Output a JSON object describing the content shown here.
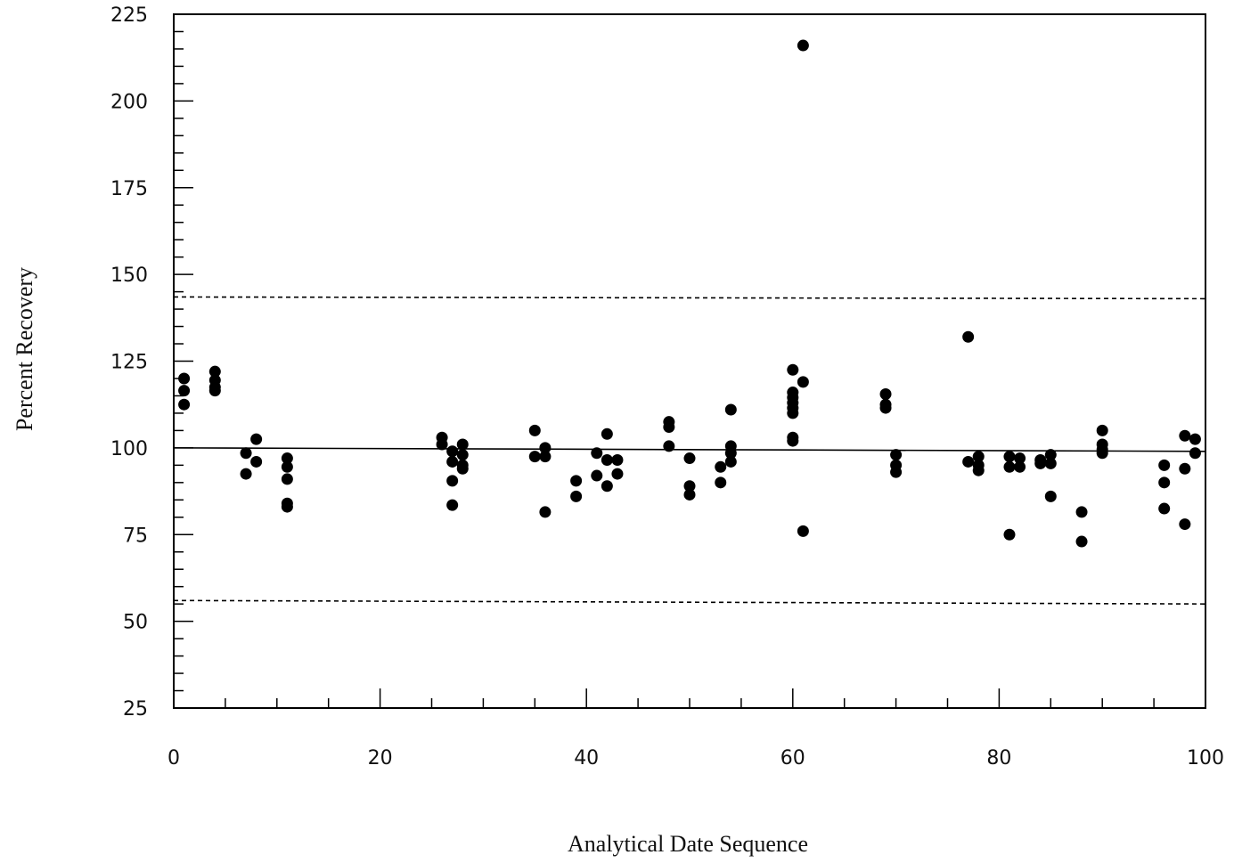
{
  "chart_data": {
    "type": "scatter",
    "title": "",
    "xlabel": "Analytical Date Sequence",
    "ylabel": "Percent Recovery",
    "xlim": [
      0,
      100
    ],
    "ylim": [
      25,
      225
    ],
    "x_ticks": [
      0,
      20,
      40,
      60,
      80,
      100
    ],
    "y_ticks": [
      25,
      50,
      75,
      100,
      125,
      150,
      175,
      200,
      225
    ],
    "grid": false,
    "legend": "none",
    "colors": {
      "points": "#000000",
      "lines": "#000000"
    },
    "reference_lines": [
      {
        "style": "solid",
        "y_at_x0": 100,
        "y_at_x100": 99
      },
      {
        "style": "dashed",
        "y_at_x0": 143.5,
        "y_at_x100": 143
      },
      {
        "style": "dashed",
        "y_at_x0": 56,
        "y_at_x100": 55
      }
    ],
    "series": [
      {
        "points": [
          [
            1,
            120
          ],
          [
            1,
            116.5
          ],
          [
            1,
            112.5
          ],
          [
            4,
            122
          ],
          [
            4,
            119.5
          ],
          [
            4,
            117.5
          ],
          [
            4,
            116.5
          ],
          [
            7,
            98.5
          ],
          [
            7,
            92.5
          ],
          [
            8,
            102.5
          ],
          [
            8,
            96
          ],
          [
            11,
            97
          ],
          [
            11,
            94.5
          ],
          [
            11,
            91
          ],
          [
            11,
            84
          ],
          [
            11,
            83
          ],
          [
            26,
            103
          ],
          [
            26,
            101
          ],
          [
            27,
            99
          ],
          [
            27,
            96
          ],
          [
            27,
            90.5
          ],
          [
            27,
            83.5
          ],
          [
            28,
            101
          ],
          [
            28,
            98
          ],
          [
            28,
            95
          ],
          [
            28,
            94
          ],
          [
            35,
            105
          ],
          [
            35,
            97.5
          ],
          [
            36,
            100
          ],
          [
            36,
            97.5
          ],
          [
            36,
            81.5
          ],
          [
            39,
            90.5
          ],
          [
            39,
            86
          ],
          [
            41,
            98.5
          ],
          [
            41,
            92
          ],
          [
            42,
            104
          ],
          [
            42,
            96.5
          ],
          [
            42,
            89
          ],
          [
            43,
            96.5
          ],
          [
            43,
            92.5
          ],
          [
            48,
            107.5
          ],
          [
            48,
            106
          ],
          [
            48,
            100.5
          ],
          [
            50,
            97
          ],
          [
            50,
            89
          ],
          [
            50,
            86.5
          ],
          [
            53,
            94.5
          ],
          [
            53,
            90
          ],
          [
            54,
            111
          ],
          [
            54,
            100.5
          ],
          [
            54,
            98.5
          ],
          [
            54,
            96
          ],
          [
            60,
            122.5
          ],
          [
            60,
            116
          ],
          [
            60,
            114.5
          ],
          [
            60,
            113
          ],
          [
            60,
            111.5
          ],
          [
            60,
            110
          ],
          [
            60,
            103
          ],
          [
            60,
            102
          ],
          [
            61,
            216
          ],
          [
            61,
            119
          ],
          [
            61,
            76
          ],
          [
            69,
            115.5
          ],
          [
            69,
            112.5
          ],
          [
            69,
            111.5
          ],
          [
            70,
            98
          ],
          [
            70,
            95
          ],
          [
            70,
            93
          ],
          [
            77,
            132
          ],
          [
            77,
            96
          ],
          [
            78,
            97.5
          ],
          [
            78,
            95
          ],
          [
            78,
            93.5
          ],
          [
            81,
            97.5
          ],
          [
            81,
            94.5
          ],
          [
            81,
            75
          ],
          [
            82,
            97
          ],
          [
            82,
            94.5
          ],
          [
            84,
            96.5
          ],
          [
            84,
            95.5
          ],
          [
            85,
            98
          ],
          [
            85,
            95.5
          ],
          [
            85,
            86
          ],
          [
            88,
            81.5
          ],
          [
            88,
            73
          ],
          [
            90,
            105
          ],
          [
            90,
            101
          ],
          [
            90,
            99.5
          ],
          [
            90,
            98.5
          ],
          [
            96,
            95
          ],
          [
            96,
            90
          ],
          [
            96,
            82.5
          ],
          [
            98,
            103.5
          ],
          [
            98,
            94
          ],
          [
            98,
            78
          ],
          [
            99,
            102.5
          ],
          [
            99,
            98.5
          ]
        ]
      }
    ]
  }
}
